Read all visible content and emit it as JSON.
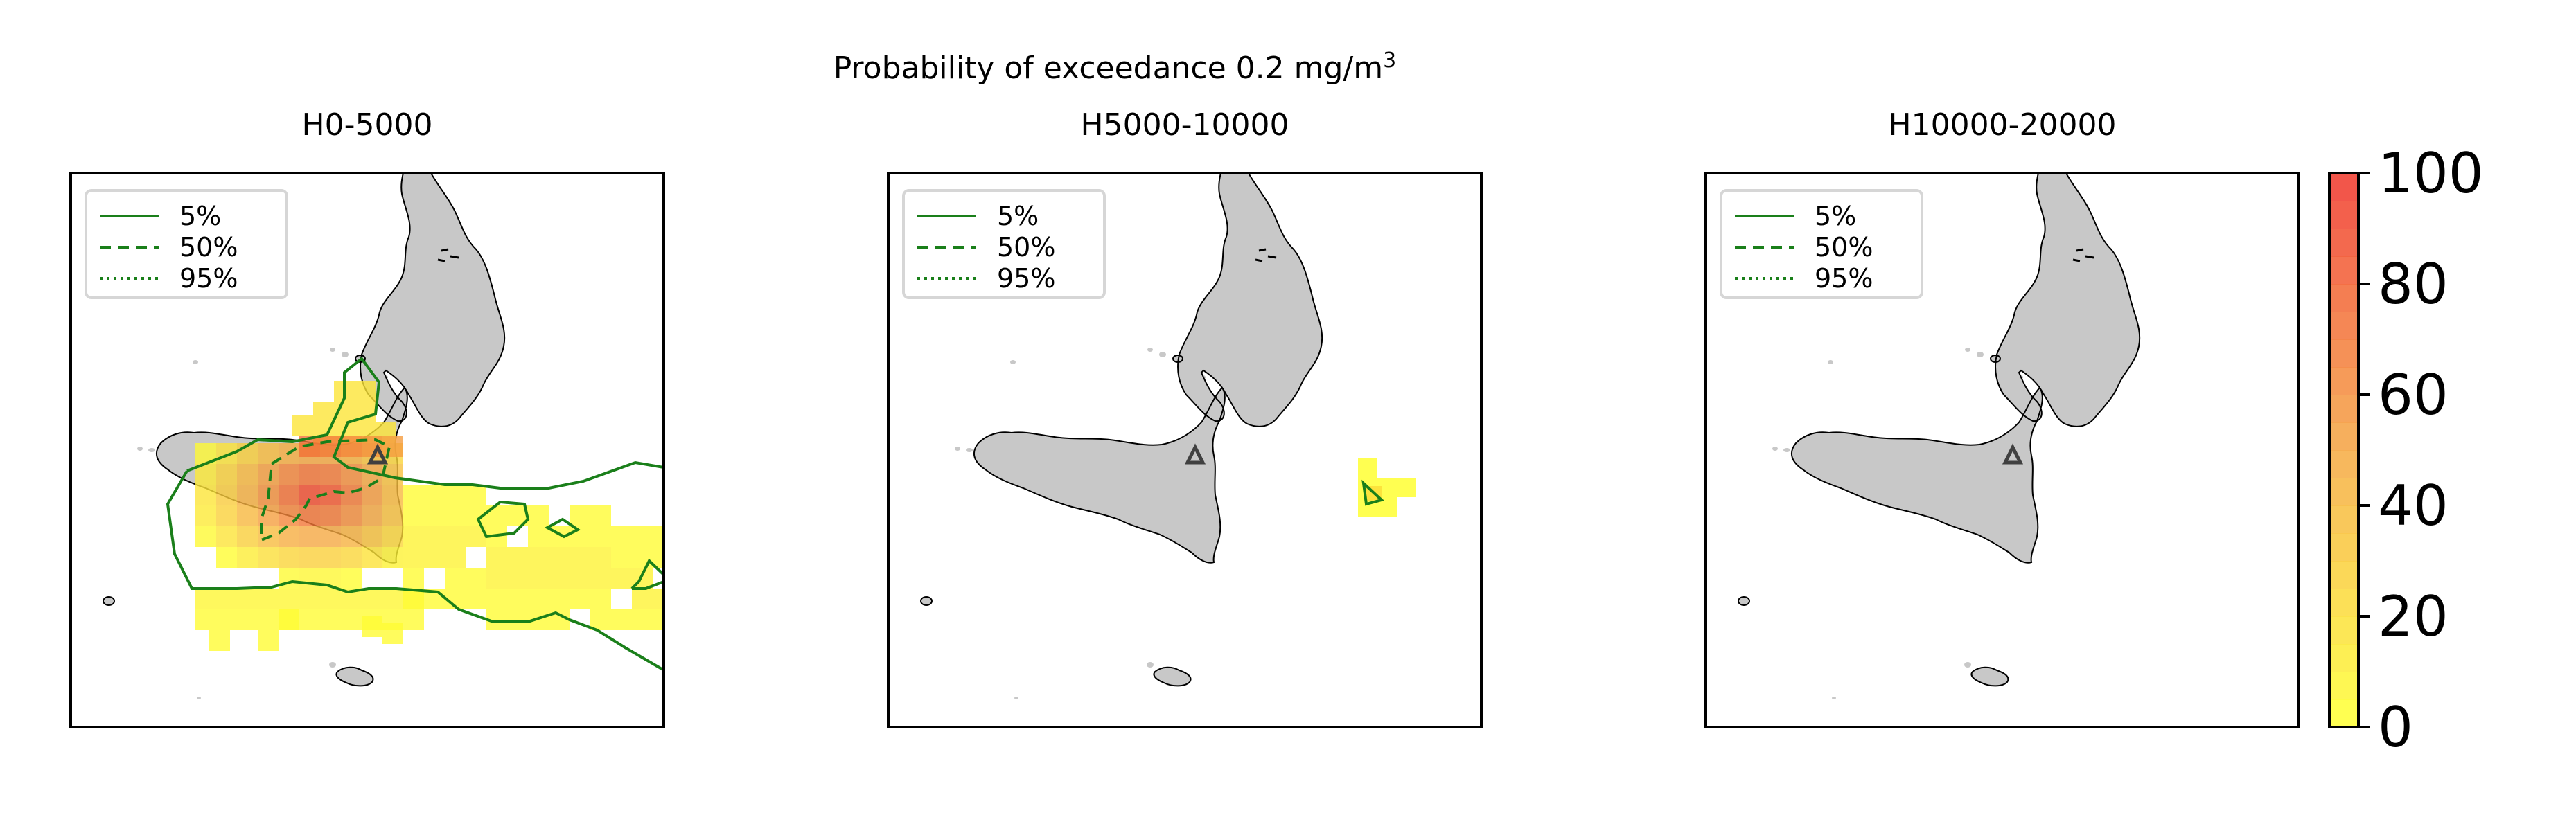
{
  "suptitle": {
    "line1_prefix": "Probability of exceedance 0.2 mg/m",
    "line1_superscript": "3"
  },
  "panels": [
    {
      "title": "H0-5000",
      "has_field": true
    },
    {
      "title": "H5000-10000",
      "has_field": true
    },
    {
      "title": "H10000-20000",
      "has_field": false
    }
  ],
  "legend": {
    "items": [
      {
        "label": "5%",
        "style": "solid"
      },
      {
        "label": "50%",
        "style": "dashed"
      },
      {
        "label": "95%",
        "style": "dotted"
      }
    ]
  },
  "colorbar": {
    "min": 0,
    "max": 100,
    "levels": 20,
    "ticks": [
      "0",
      "20",
      "40",
      "60",
      "80",
      "100"
    ],
    "color_low": "#ffff33",
    "color_mid": "#f5a742",
    "color_high": "#f0382a"
  },
  "colors": {
    "land": "#c8c8c8",
    "contour": "#1a7f1a",
    "volcano_marker": "#404040",
    "frame": "#000000"
  },
  "marker": {
    "name": "volcano-triangle-icon"
  }
}
